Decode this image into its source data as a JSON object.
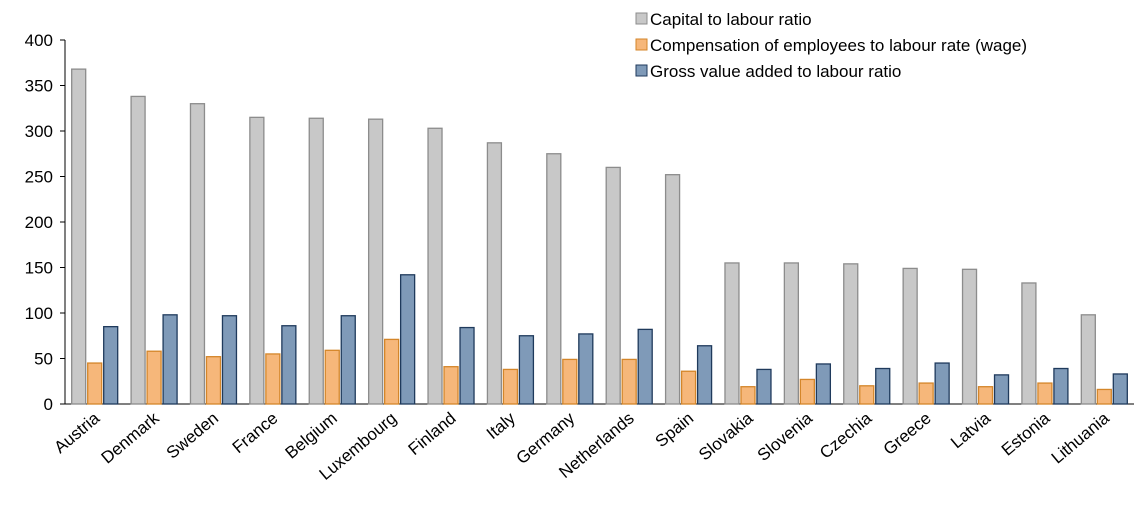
{
  "chart_data": {
    "type": "bar",
    "categories": [
      "Austria",
      "Denmark",
      "Sweden",
      "France",
      "Belgium",
      "Luxembourg",
      "Finland",
      "Italy",
      "Germany",
      "Netherlands",
      "Spain",
      "Slovakia",
      "Slovenia",
      "Czechia",
      "Greece",
      "Latvia",
      "Estonia",
      "Lithuania"
    ],
    "series": [
      {
        "name": "Capital to labour ratio",
        "color": "#c8c8c8",
        "stroke": "#8c8c8c",
        "values": [
          368,
          338,
          330,
          315,
          314,
          313,
          303,
          287,
          275,
          260,
          252,
          155,
          155,
          154,
          149,
          148,
          133,
          98
        ]
      },
      {
        "name": "Compensation of employees to labour rate (wage)",
        "color": "#f6b77a",
        "stroke": "#d4862a",
        "values": [
          45,
          58,
          52,
          55,
          59,
          71,
          41,
          38,
          49,
          49,
          36,
          19,
          27,
          20,
          23,
          19,
          23,
          16
        ]
      },
      {
        "name": "Gross value added to labour ratio",
        "color": "#7f9ab8",
        "stroke": "#1f3a5c",
        "values": [
          85,
          98,
          97,
          86,
          97,
          142,
          84,
          75,
          77,
          82,
          64,
          38,
          44,
          39,
          45,
          32,
          39,
          33
        ]
      }
    ],
    "ylim": [
      0,
      400
    ],
    "yticks": [
      0,
      50,
      100,
      150,
      200,
      250,
      300,
      350,
      400
    ],
    "grid": false,
    "legend": "top-right"
  }
}
